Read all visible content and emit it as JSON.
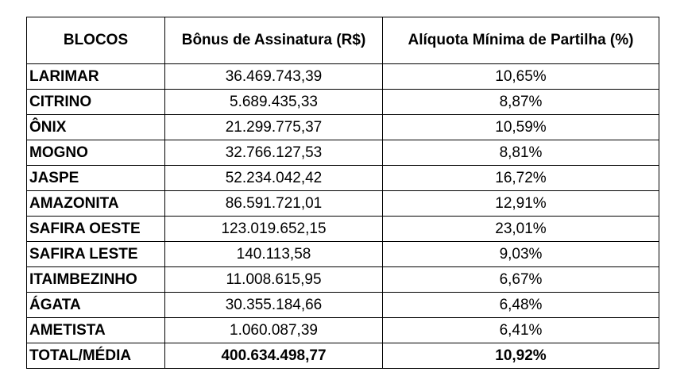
{
  "table": {
    "headers": {
      "col1": "BLOCOS",
      "col2": "Bônus de Assinatura (R$)",
      "col3": "Alíquota Mínima de Partilha (%)"
    },
    "rows": [
      {
        "name": "LARIMAR",
        "bonus": "36.469.743,39",
        "aliquota": "10,65%"
      },
      {
        "name": "CITRINO",
        "bonus": "5.689.435,33",
        "aliquota": "8,87%"
      },
      {
        "name": "ÔNIX",
        "bonus": "21.299.775,37",
        "aliquota": "10,59%"
      },
      {
        "name": "MOGNO",
        "bonus": "32.766.127,53",
        "aliquota": "8,81%"
      },
      {
        "name": "JASPE",
        "bonus": "52.234.042,42",
        "aliquota": "16,72%"
      },
      {
        "name": "AMAZONITA",
        "bonus": "86.591.721,01",
        "aliquota": "12,91%"
      },
      {
        "name": "SAFIRA OESTE",
        "bonus": "123.019.652,15",
        "aliquota": "23,01%"
      },
      {
        "name": "SAFIRA LESTE",
        "bonus": "140.113,58",
        "aliquota": "9,03%"
      },
      {
        "name": "ITAIMBEZINHO",
        "bonus": "11.008.615,95",
        "aliquota": "6,67%"
      },
      {
        "name": "ÁGATA",
        "bonus": "30.355.184,66",
        "aliquota": "6,48%"
      },
      {
        "name": "AMETISTA",
        "bonus": "1.060.087,39",
        "aliquota": "6,41%"
      }
    ],
    "total": {
      "name": "TOTAL/MÉDIA",
      "bonus": "400.634.498,77",
      "aliquota": "10,92%"
    }
  }
}
